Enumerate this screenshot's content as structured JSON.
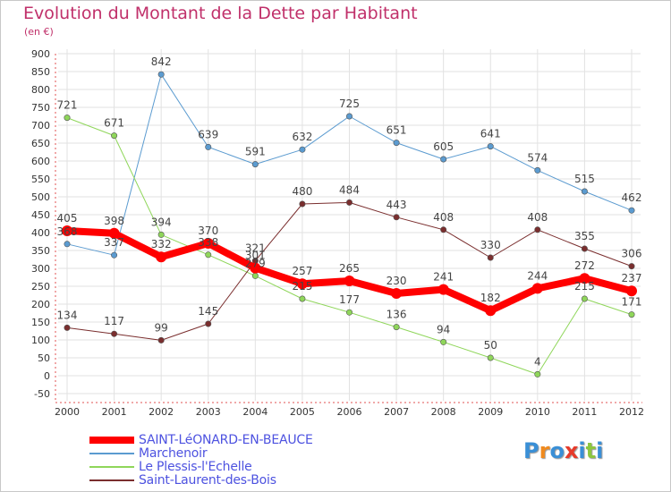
{
  "title": "Evolution du Montant de la Dette par Habitant",
  "subtitle": "(en €)",
  "logo": {
    "text": "Proxiti",
    "colors": [
      "#3a8fd6",
      "#f08a1e",
      "#3a8fd6",
      "#e63a2a",
      "#3a8fd6",
      "#8dc63f",
      "#3a8fd6"
    ]
  },
  "chart_data": {
    "type": "line",
    "x": [
      "2000",
      "2001",
      "2002",
      "2003",
      "2004",
      "2005",
      "2006",
      "2007",
      "2008",
      "2009",
      "2010",
      "2011",
      "2012"
    ],
    "ylim": [
      -50,
      900
    ],
    "yticks": [
      -50,
      0,
      50,
      100,
      150,
      200,
      250,
      300,
      350,
      400,
      450,
      500,
      550,
      600,
      650,
      700,
      750,
      800,
      850,
      900
    ],
    "grid": true,
    "legend": "bottom-left",
    "series": [
      {
        "name": "Marchenoir",
        "color": "#5b9bd0",
        "width": 1,
        "values": [
          368,
          337,
          842,
          639,
          591,
          632,
          725,
          651,
          605,
          641,
          574,
          515,
          462
        ]
      },
      {
        "name": "Le Plessis-l'Echelle",
        "color": "#8fd65a",
        "width": 1,
        "values": [
          721,
          671,
          394,
          338,
          279,
          215,
          177,
          136,
          94,
          50,
          4,
          215,
          171
        ]
      },
      {
        "name": "Saint-Laurent-des-Bois",
        "color": "#7a2e2e",
        "width": 1,
        "values": [
          134,
          117,
          99,
          145,
          321,
          480,
          484,
          443,
          408,
          330,
          408,
          355,
          306
        ]
      },
      {
        "name": "SAINT-LéONARD-EN-BEAUCE",
        "color": "#ff0000",
        "width": 8,
        "values": [
          405,
          398,
          332,
          370,
          301,
          257,
          265,
          230,
          241,
          182,
          244,
          272,
          237
        ]
      }
    ]
  }
}
